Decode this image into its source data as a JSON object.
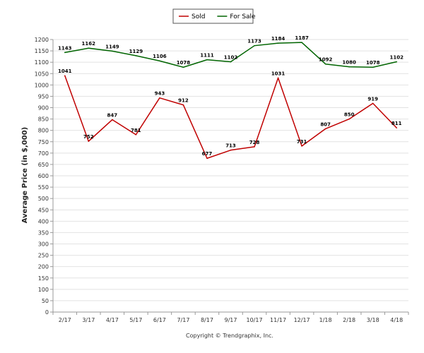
{
  "chart_data": {
    "type": "line",
    "ylabel": "Average Price (in $,000)",
    "categories": [
      "2/17",
      "3/17",
      "4/17",
      "5/17",
      "6/17",
      "7/17",
      "8/17",
      "9/17",
      "10/17",
      "11/17",
      "12/17",
      "1/18",
      "2/18",
      "3/18",
      "4/18"
    ],
    "ylim": [
      0,
      1200
    ],
    "ytick_step": 50,
    "grid": true,
    "legend_position": "top-center",
    "series": [
      {
        "name": "Sold",
        "color": "#c00000",
        "values": [
          1041,
          752,
          847,
          781,
          943,
          912,
          677,
          713,
          728,
          1031,
          731,
          807,
          850,
          919,
          811
        ]
      },
      {
        "name": "For Sale",
        "color": "#006400",
        "values": [
          1143,
          1162,
          1149,
          1129,
          1106,
          1078,
          1111,
          1102,
          1173,
          1184,
          1187,
          1092,
          1080,
          1078,
          1102
        ]
      }
    ]
  },
  "footer": {
    "copyright": "Copyright © Trendgraphix, Inc."
  }
}
